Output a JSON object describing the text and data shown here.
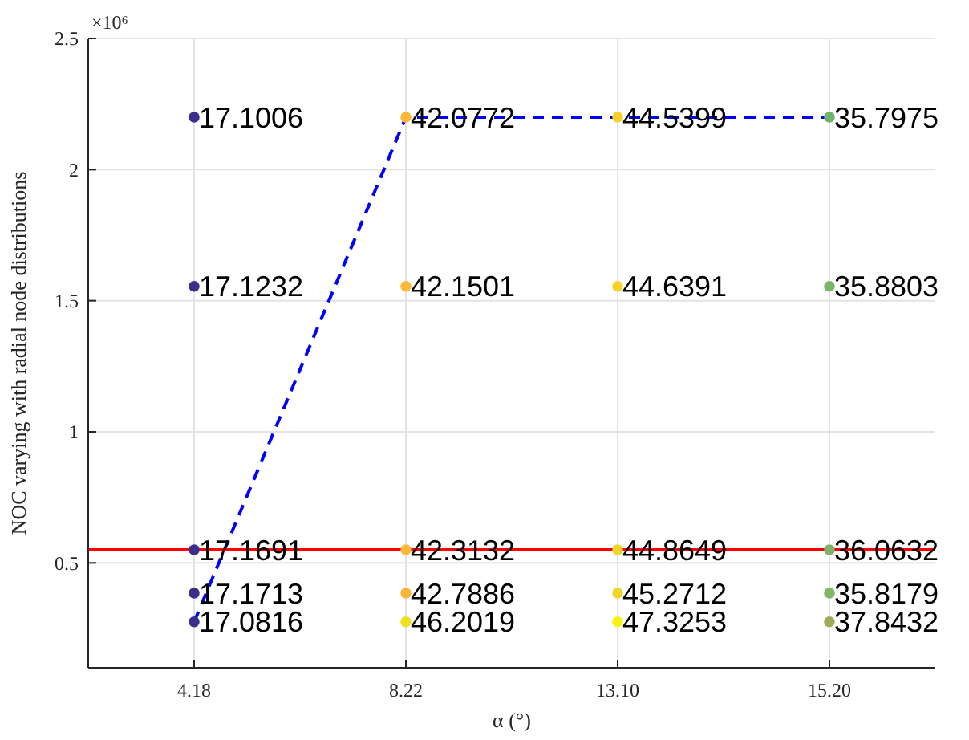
{
  "chart_data": {
    "type": "scatter",
    "xlabel": "α (°)",
    "ylabel": "NOC varying with radial node distributions",
    "categories": [
      "4.18",
      "8.22",
      "13.10",
      "15.20"
    ],
    "ylim": [
      0.1,
      2.5
    ],
    "yticks": [
      0.5,
      1,
      1.5,
      2,
      2.5
    ],
    "grid": true,
    "marker": "circle",
    "annotations": [
      "×10⁶",
      {
        "text": "17.1006",
        "x": "4.18",
        "y": 2.2
      },
      {
        "text": "42.0772",
        "x": "8.22",
        "y": 2.2
      },
      {
        "text": "44.5399",
        "x": "13.10",
        "y": 2.2
      },
      {
        "text": "35.7975",
        "x": "15.20",
        "y": 2.2
      },
      {
        "text": "17.1232",
        "x": "4.18",
        "y": 1.555
      },
      {
        "text": "42.1501",
        "x": "8.22",
        "y": 1.555
      },
      {
        "text": "44.6391",
        "x": "13.10",
        "y": 1.555
      },
      {
        "text": "35.8803",
        "x": "15.20",
        "y": 1.555
      },
      {
        "text": "17.1691",
        "x": "4.18",
        "y": 0.55
      },
      {
        "text": "42.3132",
        "x": "8.22",
        "y": 0.55
      },
      {
        "text": "44.8649",
        "x": "13.10",
        "y": 0.55
      },
      {
        "text": "36.0632",
        "x": "15.20",
        "y": 0.55
      },
      {
        "text": "17.1713",
        "x": "4.18",
        "y": 0.385
      },
      {
        "text": "42.7886",
        "x": "8.22",
        "y": 0.385
      },
      {
        "text": "45.2712",
        "x": "13.10",
        "y": 0.385
      },
      {
        "text": "35.8179",
        "x": "15.20",
        "y": 0.385
      },
      {
        "text": "17.0816",
        "x": "4.18",
        "y": 0.275
      },
      {
        "text": "46.2019",
        "x": "8.22",
        "y": 0.275
      },
      {
        "text": "47.3253",
        "x": "13.10",
        "y": 0.275
      },
      {
        "text": "37.8432",
        "x": "15.20",
        "y": 0.275
      }
    ],
    "series": [
      {
        "values": [
          2.2,
          2.2,
          2.2,
          2.2
        ],
        "colors": [
          "#3a2f8c",
          "#fbb83a",
          "#f5cf2a",
          "#6fb26a"
        ]
      },
      {
        "values": [
          1.555,
          1.555,
          1.555,
          1.555
        ],
        "colors": [
          "#3a2f8c",
          "#fbb83a",
          "#f5d22a",
          "#79b66a"
        ]
      },
      {
        "values": [
          0.55,
          0.55,
          0.55,
          0.55
        ],
        "colors": [
          "#3a2f8c",
          "#fbb83a",
          "#f5d42a",
          "#7ab56b"
        ]
      },
      {
        "values": [
          0.385,
          0.385,
          0.385,
          0.385
        ],
        "colors": [
          "#3a2f8c",
          "#f9b63a",
          "#f2d52a",
          "#80b868"
        ]
      },
      {
        "values": [
          0.275,
          0.275,
          0.275,
          0.275
        ],
        "colors": [
          "#3a2f8c",
          "#f0e020",
          "#f9f214",
          "#9eab5a"
        ]
      },
      {
        "type": "line",
        "color": "#0000ff",
        "line_style": "dashed",
        "marker": "none",
        "values": [
          0.275,
          2.2,
          2.2,
          2.2
        ]
      }
    ],
    "ref_lines": [
      {
        "axis": "y",
        "value": 0.55,
        "color": "#ff0000"
      }
    ]
  }
}
